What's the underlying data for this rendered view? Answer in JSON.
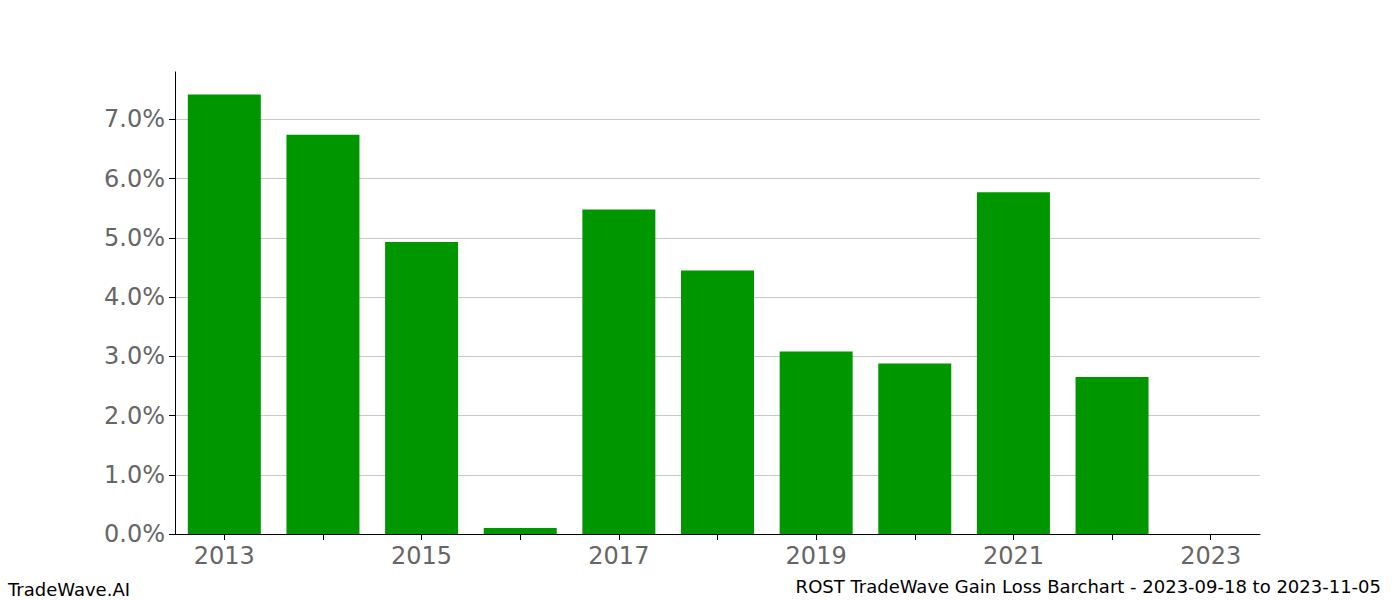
{
  "chart_data": {
    "type": "bar",
    "title": "ROST TradeWave Gain Loss Barchart - 2023-09-18 to 2023-11-05",
    "annotations": [
      "TradeWave.AI"
    ],
    "categories": [
      "2013",
      null,
      "2015",
      null,
      "2017",
      null,
      "2019",
      null,
      "2021",
      null,
      "2023"
    ],
    "values": [
      7.42,
      6.74,
      4.93,
      0.1,
      5.48,
      4.45,
      3.08,
      2.88,
      5.77,
      2.65,
      null
    ],
    "color": "#009600",
    "ylim": [
      0,
      7.8
    ],
    "yticks": [
      {
        "value": 0,
        "label": "0.0%"
      },
      {
        "value": 1,
        "label": "1.0%"
      },
      {
        "value": 2,
        "label": "2.0%"
      },
      {
        "value": 3,
        "label": "3.0%"
      },
      {
        "value": 4,
        "label": "4.0%"
      },
      {
        "value": 5,
        "label": "5.0%"
      },
      {
        "value": 6,
        "label": "6.0%"
      },
      {
        "value": 7,
        "label": "7.0%"
      }
    ],
    "grid": true,
    "data_labels": false
  }
}
